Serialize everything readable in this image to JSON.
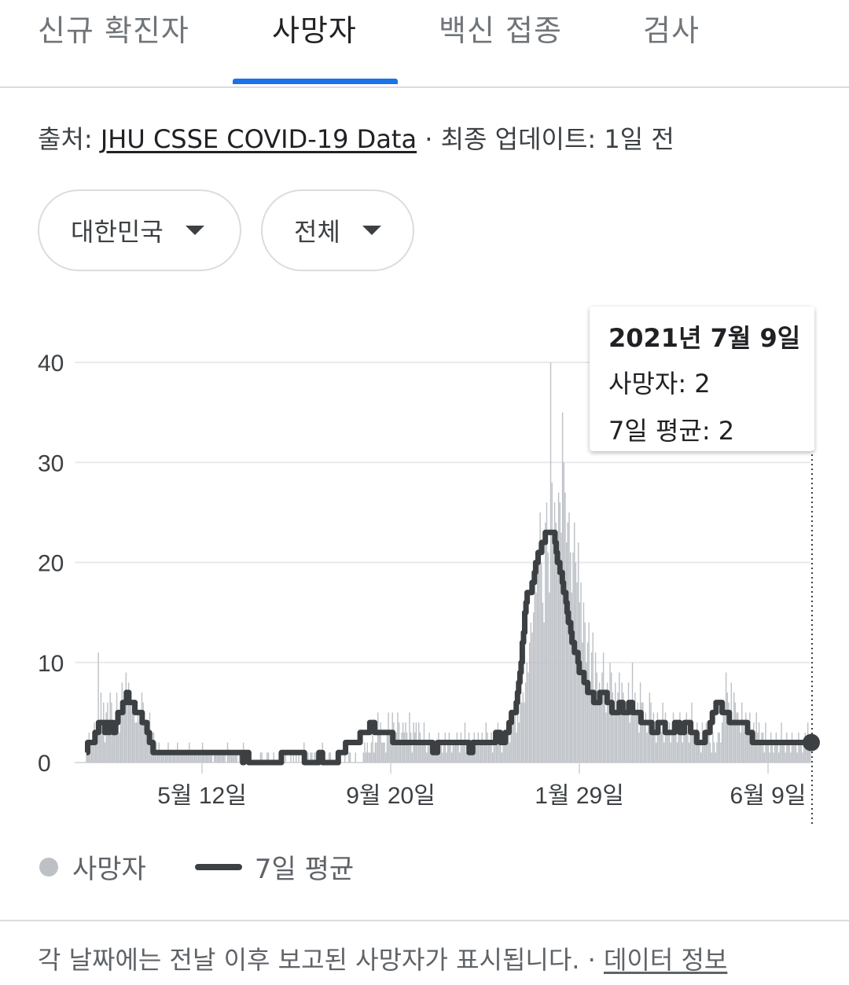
{
  "tabs": [
    {
      "label": "신규 확진자",
      "active": false
    },
    {
      "label": "사망자",
      "active": true
    },
    {
      "label": "백신 접종",
      "active": false
    },
    {
      "label": "검사",
      "active": false
    }
  ],
  "source": {
    "prefix": "출처: ",
    "link_text": "JHU CSSE COVID-19 Data",
    "separator": " · ",
    "updated": "최종 업데이트: 1일 전"
  },
  "filters": {
    "country": "대한민국",
    "scope": "전체"
  },
  "tooltip": {
    "date": "2021년 7월 9일",
    "deaths": "사망자: 2",
    "avg": "7일 평균: 2"
  },
  "legend": {
    "deaths": "사망자",
    "avg": "7일 평균"
  },
  "footer": {
    "note": "각 날짜에는 전날 이후 보고된 사망자가 표시됩니다.",
    "separator": " · ",
    "link": "데이터 정보"
  },
  "colors": {
    "accent": "#1a73e8",
    "bars": "#bdc1c6",
    "line": "#3c4043"
  },
  "chart_data": {
    "type": "bar",
    "title": "",
    "x_tick_labels": [
      "5월 12일",
      "9월 20일",
      "1월 29일",
      "6월 9일"
    ],
    "y_ticks": [
      0,
      10,
      20,
      30,
      40
    ],
    "ylim": [
      0,
      40
    ],
    "grid": true,
    "legend_position": "bottom",
    "series": [
      {
        "name": "사망자",
        "render": "bar",
        "values": [
          2,
          2,
          3,
          2,
          2,
          3,
          4,
          2,
          3,
          11,
          3,
          7,
          3,
          6,
          2,
          5,
          6,
          4,
          7,
          6,
          4,
          3,
          3,
          7,
          5,
          3,
          5,
          8,
          6,
          6,
          9,
          7,
          8,
          7,
          6,
          6,
          5,
          4,
          4,
          5,
          4,
          5,
          7,
          6,
          5,
          4,
          3,
          4,
          5,
          3,
          3,
          3,
          2,
          2,
          1,
          2,
          1,
          1,
          1,
          1,
          1,
          1,
          2,
          1,
          1,
          1,
          1,
          1,
          1,
          2,
          1,
          1,
          1,
          1,
          1,
          1,
          1,
          1,
          2,
          1,
          1,
          1,
          1,
          1,
          1,
          1,
          1,
          1,
          2,
          1,
          1,
          1,
          1,
          1,
          1,
          1,
          0,
          1,
          1,
          1,
          1,
          1,
          1,
          1,
          1,
          1,
          0,
          2,
          1,
          1,
          1,
          1,
          1,
          1,
          1,
          0,
          1,
          1,
          1,
          2,
          0,
          1,
          1,
          0,
          0,
          0,
          0,
          0,
          0,
          0,
          0,
          0,
          1,
          1,
          0,
          0,
          0,
          1,
          1,
          0,
          0,
          0,
          1,
          0,
          0,
          0,
          1,
          0,
          0,
          0,
          0,
          1,
          0,
          0,
          0,
          1,
          0,
          1,
          0,
          1,
          0,
          1,
          0,
          0,
          1,
          2,
          1,
          1,
          1,
          0,
          1,
          1,
          0,
          1,
          1,
          1,
          1,
          0,
          1,
          2,
          0,
          0,
          0,
          0,
          1,
          1,
          0,
          0,
          0,
          0,
          0,
          0,
          0,
          0,
          0,
          0,
          1,
          0,
          0,
          1,
          1,
          0,
          0,
          0,
          1,
          0,
          0,
          0,
          0,
          0,
          1,
          2,
          1,
          2,
          1,
          1,
          2,
          3,
          1,
          2,
          2,
          5,
          3,
          4,
          2,
          2,
          2,
          1,
          3,
          5,
          3,
          2,
          5,
          4,
          3,
          3,
          5,
          4,
          2,
          3,
          4,
          3,
          4,
          3,
          2,
          5,
          3,
          1,
          4,
          3,
          4,
          2,
          4,
          3,
          2,
          2,
          4,
          2,
          1,
          2,
          3,
          2,
          2,
          1,
          2,
          2,
          1,
          3,
          2,
          2,
          1,
          2,
          3,
          1,
          2,
          3,
          2,
          1,
          2,
          2,
          2,
          3,
          2,
          1,
          3,
          2,
          2,
          4,
          1,
          2,
          3,
          2,
          2,
          1,
          3,
          2,
          2,
          3,
          2,
          2,
          3,
          2,
          2,
          4,
          3,
          2,
          2,
          3,
          1,
          3,
          2,
          2,
          4,
          3,
          2,
          1,
          3,
          2,
          3,
          4,
          3,
          2,
          3,
          4,
          4,
          5,
          3,
          5,
          4,
          6,
          6,
          7,
          6,
          8,
          10,
          9,
          12,
          14,
          13,
          15,
          18,
          17,
          19,
          22,
          25,
          20,
          16,
          14,
          24,
          26,
          21,
          17,
          40,
          28,
          22,
          26,
          24,
          19,
          27,
          26,
          23,
          35,
          30,
          27,
          22,
          24,
          25,
          21,
          17,
          21,
          24,
          20,
          18,
          22,
          16,
          18,
          12,
          16,
          14,
          10,
          12,
          14,
          8,
          11,
          13,
          7,
          11,
          9,
          7,
          8,
          6,
          9,
          11,
          7,
          5,
          8,
          6,
          10,
          9,
          7,
          6,
          8,
          5,
          7,
          9,
          6,
          8,
          7,
          5,
          6,
          6,
          8,
          4,
          5,
          10,
          6,
          7,
          5,
          6,
          3,
          8,
          6,
          6,
          4,
          5,
          3,
          4,
          7,
          6,
          4,
          5,
          3,
          2,
          5,
          4,
          4,
          3,
          6,
          2,
          5,
          3,
          3,
          4,
          2,
          4,
          5,
          3,
          4,
          2,
          3,
          5,
          4,
          2,
          3,
          4,
          5,
          3,
          2,
          3,
          6,
          4,
          3,
          2,
          4,
          3,
          3,
          1,
          4,
          3,
          2,
          4,
          3,
          3,
          2,
          1,
          3,
          2,
          1,
          2,
          3,
          3,
          2,
          4,
          5,
          6,
          9,
          7,
          6,
          5,
          8,
          4,
          7,
          6,
          5,
          5,
          4,
          3,
          6,
          4,
          3,
          5,
          3,
          4,
          5,
          3,
          2,
          4,
          3,
          5,
          3,
          4,
          2,
          3,
          3,
          1,
          4,
          2,
          2,
          1,
          3,
          2,
          1,
          2,
          3,
          2,
          1,
          2,
          4,
          2,
          2,
          1,
          3,
          2,
          2,
          1,
          3,
          2,
          2,
          2,
          1,
          3,
          2,
          2,
          1,
          2,
          3,
          2,
          4,
          2,
          2
        ]
      },
      {
        "name": "7일 평균",
        "render": "step-line",
        "values": [
          1,
          2,
          2,
          2,
          2,
          2,
          2,
          3,
          3,
          3,
          4,
          4,
          4,
          4,
          4,
          3,
          4,
          4,
          3,
          4,
          4,
          4,
          3,
          3,
          4,
          4,
          5,
          5,
          5,
          5,
          6,
          6,
          6,
          7,
          7,
          6,
          6,
          6,
          6,
          6,
          5,
          5,
          5,
          5,
          5,
          5,
          4,
          4,
          4,
          4,
          3,
          3,
          2,
          2,
          2,
          1,
          1,
          1,
          1,
          1,
          1,
          1,
          1,
          1,
          1,
          1,
          1,
          1,
          1,
          1,
          1,
          1,
          1,
          1,
          1,
          1,
          1,
          1,
          1,
          1,
          1,
          1,
          1,
          1,
          1,
          1,
          1,
          1,
          1,
          1,
          1,
          1,
          1,
          1,
          1,
          1,
          1,
          1,
          1,
          1,
          1,
          1,
          1,
          1,
          1,
          1,
          1,
          1,
          1,
          1,
          1,
          1,
          1,
          1,
          1,
          1,
          1,
          1,
          1,
          1,
          1,
          1,
          1,
          1,
          1,
          1,
          1,
          1,
          1,
          0,
          1,
          1,
          1,
          1,
          0,
          0,
          0,
          0,
          0,
          0,
          0,
          0,
          0,
          0,
          0,
          0,
          0,
          0,
          0,
          0,
          0,
          0,
          0,
          0,
          0,
          0,
          0,
          0,
          0,
          0,
          0,
          1,
          1,
          1,
          1,
          1,
          1,
          1,
          1,
          1,
          1,
          1,
          1,
          1,
          1,
          1,
          1,
          1,
          1,
          1,
          0,
          0,
          0,
          0,
          0,
          0,
          0,
          0,
          0,
          0,
          0,
          0,
          1,
          1,
          1,
          0,
          0,
          0,
          0,
          0,
          0,
          0,
          0,
          0,
          0,
          0,
          0,
          0,
          1,
          1,
          1,
          1,
          1,
          1,
          2,
          2,
          2,
          2,
          2,
          2,
          2,
          2,
          2,
          2,
          2,
          2,
          3,
          3,
          3,
          3,
          3,
          3,
          3,
          3,
          4,
          4,
          4,
          4,
          3,
          3,
          3,
          3,
          3,
          3,
          3,
          3,
          3,
          3,
          3,
          3,
          3,
          3,
          3,
          2,
          2,
          2,
          2,
          2,
          2,
          2,
          2,
          2,
          2,
          2,
          2,
          2,
          2,
          2,
          2,
          2,
          2,
          2,
          2,
          2,
          2,
          2,
          2,
          2,
          2,
          2,
          2,
          2,
          2,
          2,
          2,
          2,
          1,
          1,
          1,
          1,
          2,
          2,
          2,
          2,
          2,
          2,
          2,
          2,
          2,
          2,
          2,
          2,
          2,
          2,
          2,
          2,
          2,
          2,
          2,
          2,
          2,
          2,
          2,
          2,
          2,
          2,
          1,
          1,
          1,
          2,
          2,
          2,
          2,
          2,
          2,
          2,
          2,
          2,
          2,
          2,
          2,
          2,
          2,
          2,
          2,
          2,
          2,
          2,
          3,
          3,
          3,
          3,
          2,
          2,
          2,
          2,
          3,
          3,
          3,
          4,
          4,
          5,
          5,
          5,
          5,
          6,
          7,
          8,
          9,
          10,
          12,
          13,
          15,
          16,
          17,
          17,
          17,
          17,
          18,
          18,
          19,
          20,
          20,
          21,
          21,
          21,
          22,
          22,
          22,
          23,
          23,
          23,
          23,
          23,
          23,
          23,
          23,
          22,
          21,
          20,
          20,
          19,
          19,
          18,
          17,
          17,
          16,
          15,
          14,
          14,
          13,
          12,
          12,
          11,
          11,
          11,
          10,
          9,
          9,
          9,
          9,
          8,
          8,
          8,
          7,
          7,
          7,
          7,
          7,
          6,
          6,
          6,
          6,
          6,
          7,
          7,
          7,
          7,
          7,
          7,
          6,
          6,
          6,
          6,
          5,
          5,
          5,
          5,
          5,
          5,
          6,
          6,
          6,
          5,
          5,
          5,
          5,
          5,
          6,
          6,
          6,
          5,
          5,
          5,
          5,
          5,
          5,
          5,
          4,
          4,
          4,
          4,
          4,
          4,
          4,
          4,
          4,
          3,
          3,
          3,
          3,
          3,
          4,
          4,
          4,
          4,
          4,
          4,
          3,
          3,
          3,
          3,
          3,
          3,
          3,
          3,
          4,
          4,
          4,
          4,
          3,
          3,
          3,
          3,
          4,
          4,
          4,
          4,
          4,
          3,
          3,
          3,
          3,
          3,
          2,
          2,
          2,
          2,
          2,
          2,
          2,
          3,
          3,
          3,
          3,
          4,
          4,
          5,
          5,
          5,
          6,
          6,
          6,
          6,
          6,
          5,
          5,
          5,
          5,
          5,
          5,
          4,
          4,
          4,
          4,
          4,
          4,
          4,
          4,
          4,
          4,
          4,
          4,
          4,
          4,
          4,
          3,
          3,
          3,
          3,
          2,
          2,
          2,
          2,
          2,
          2,
          2,
          2,
          2,
          2,
          2,
          2,
          2,
          2,
          2,
          2,
          2,
          2,
          2,
          2,
          2,
          2,
          2,
          2,
          2,
          2,
          2,
          2,
          2,
          2,
          2,
          2,
          2,
          2,
          2,
          2,
          2,
          2,
          2,
          2,
          2,
          2,
          2,
          2,
          2,
          2,
          2,
          2,
          2
        ]
      }
    ],
    "highlight": {
      "label": "2021년 7월 9일",
      "deaths": 2,
      "avg": 2
    }
  }
}
